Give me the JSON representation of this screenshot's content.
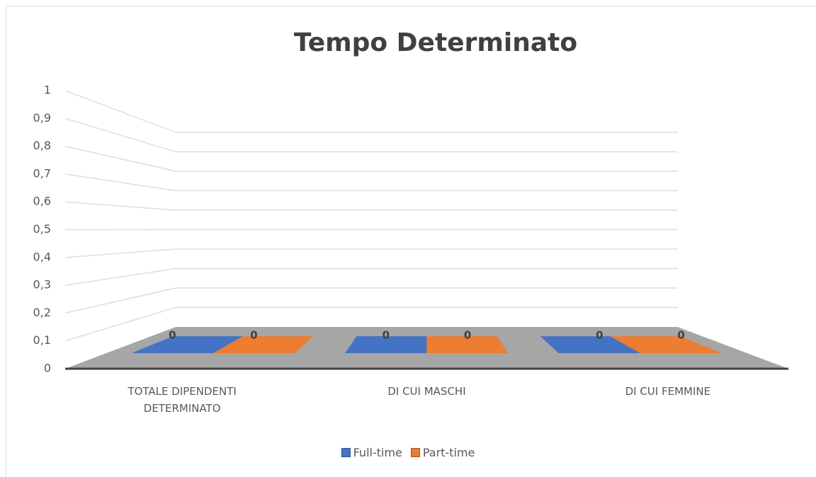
{
  "chart_data": {
    "type": "bar",
    "title": "Tempo Determinato",
    "categories": [
      "TOTALE DIPENDENTI DETERMINATO",
      "DI CUI MASCHI",
      "DI CUI FEMMINE"
    ],
    "series": [
      {
        "name": "Full-time",
        "color": "#4472c4",
        "values": [
          0,
          0,
          0
        ]
      },
      {
        "name": "Part-time",
        "color": "#ed7d31",
        "values": [
          0,
          0,
          0
        ]
      }
    ],
    "ylim": [
      0,
      1
    ],
    "yticks": [
      0,
      {
        "value": 0.1,
        "label": "0,1"
      },
      {
        "value": 0.2,
        "label": "0,2"
      },
      {
        "value": 0.3,
        "label": "0,3"
      },
      {
        "value": 0.4,
        "label": "0,4"
      },
      {
        "value": 0.5,
        "label": "0,5"
      },
      {
        "value": 0.6,
        "label": "0,6"
      },
      {
        "value": 0.7,
        "label": "0,7"
      },
      {
        "value": 0.8,
        "label": "0,8"
      },
      {
        "value": 0.9,
        "label": "0,9"
      },
      1
    ],
    "grid": true,
    "legend": "bottom"
  }
}
